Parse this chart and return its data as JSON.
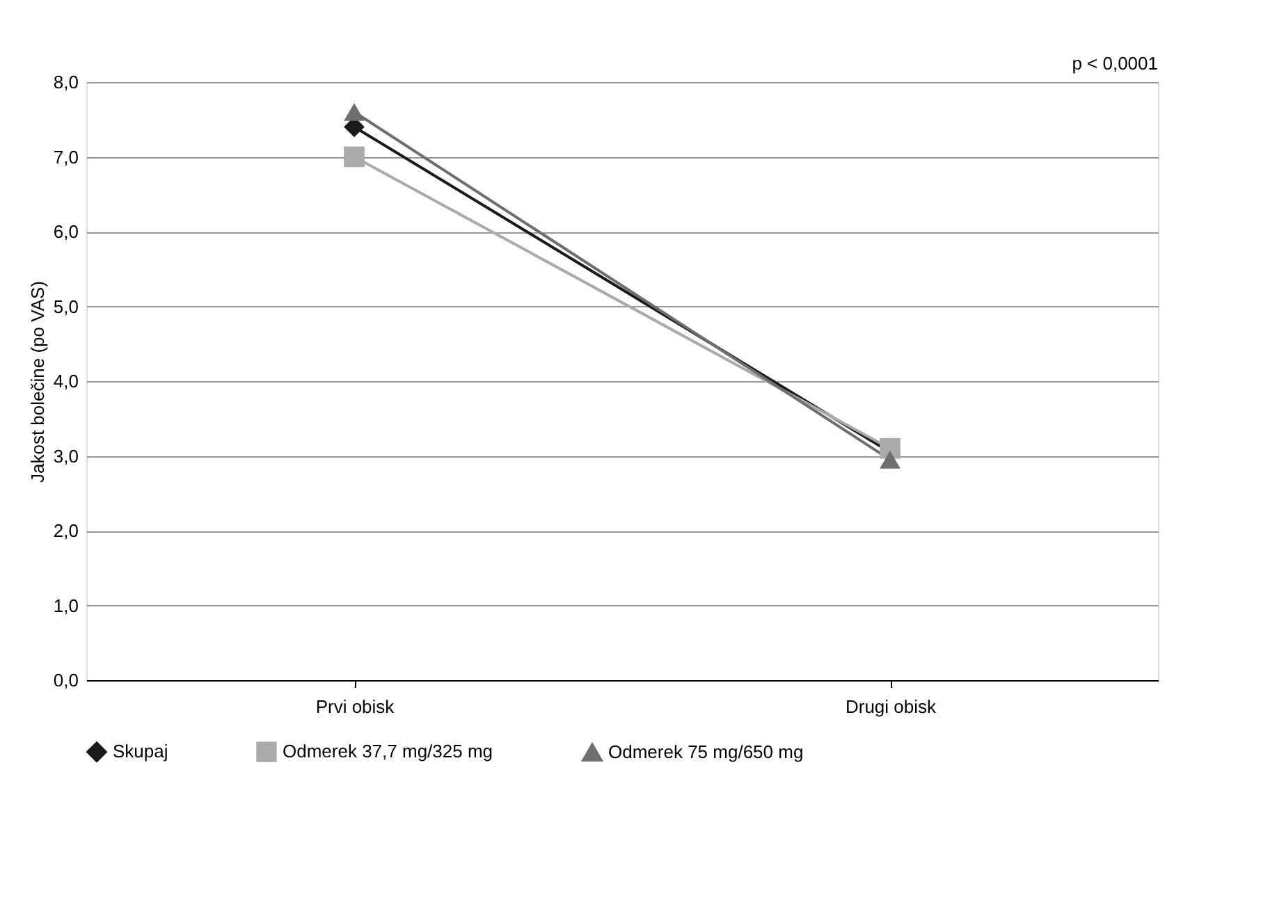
{
  "chart_data": {
    "type": "line",
    "ylabel": "Jakost bolečine (po VAS)",
    "categories": [
      "Prvi obisk",
      "Drugi obisk"
    ],
    "series": [
      {
        "name": "Skupaj",
        "color": "#1a1a1a",
        "marker": "diamond",
        "values": [
          7.4,
          3.05
        ]
      },
      {
        "name": "Odmerek 37,7 mg/325 mg",
        "color": "#aaaaaa",
        "marker": "square",
        "values": [
          7.0,
          3.1
        ]
      },
      {
        "name": "Odmerek 75 mg/650 mg",
        "color": "#6e6e6e",
        "marker": "triangle",
        "values": [
          7.6,
          2.95
        ]
      }
    ],
    "ylim": [
      0,
      8
    ],
    "yticks": [
      {
        "value": 0,
        "label": "0,0"
      },
      {
        "value": 1,
        "label": "1,0"
      },
      {
        "value": 2,
        "label": "2,0"
      },
      {
        "value": 3,
        "label": "3,0"
      },
      {
        "value": 4,
        "label": "4,0"
      },
      {
        "value": 5,
        "label": "5,0"
      },
      {
        "value": 6,
        "label": "6,0"
      },
      {
        "value": 7,
        "label": "7,0"
      },
      {
        "value": 8,
        "label": "8,0"
      }
    ],
    "grid": "y",
    "legend": "bottom",
    "line_style": "solid",
    "annotations": [
      "p < 0,0001"
    ]
  }
}
